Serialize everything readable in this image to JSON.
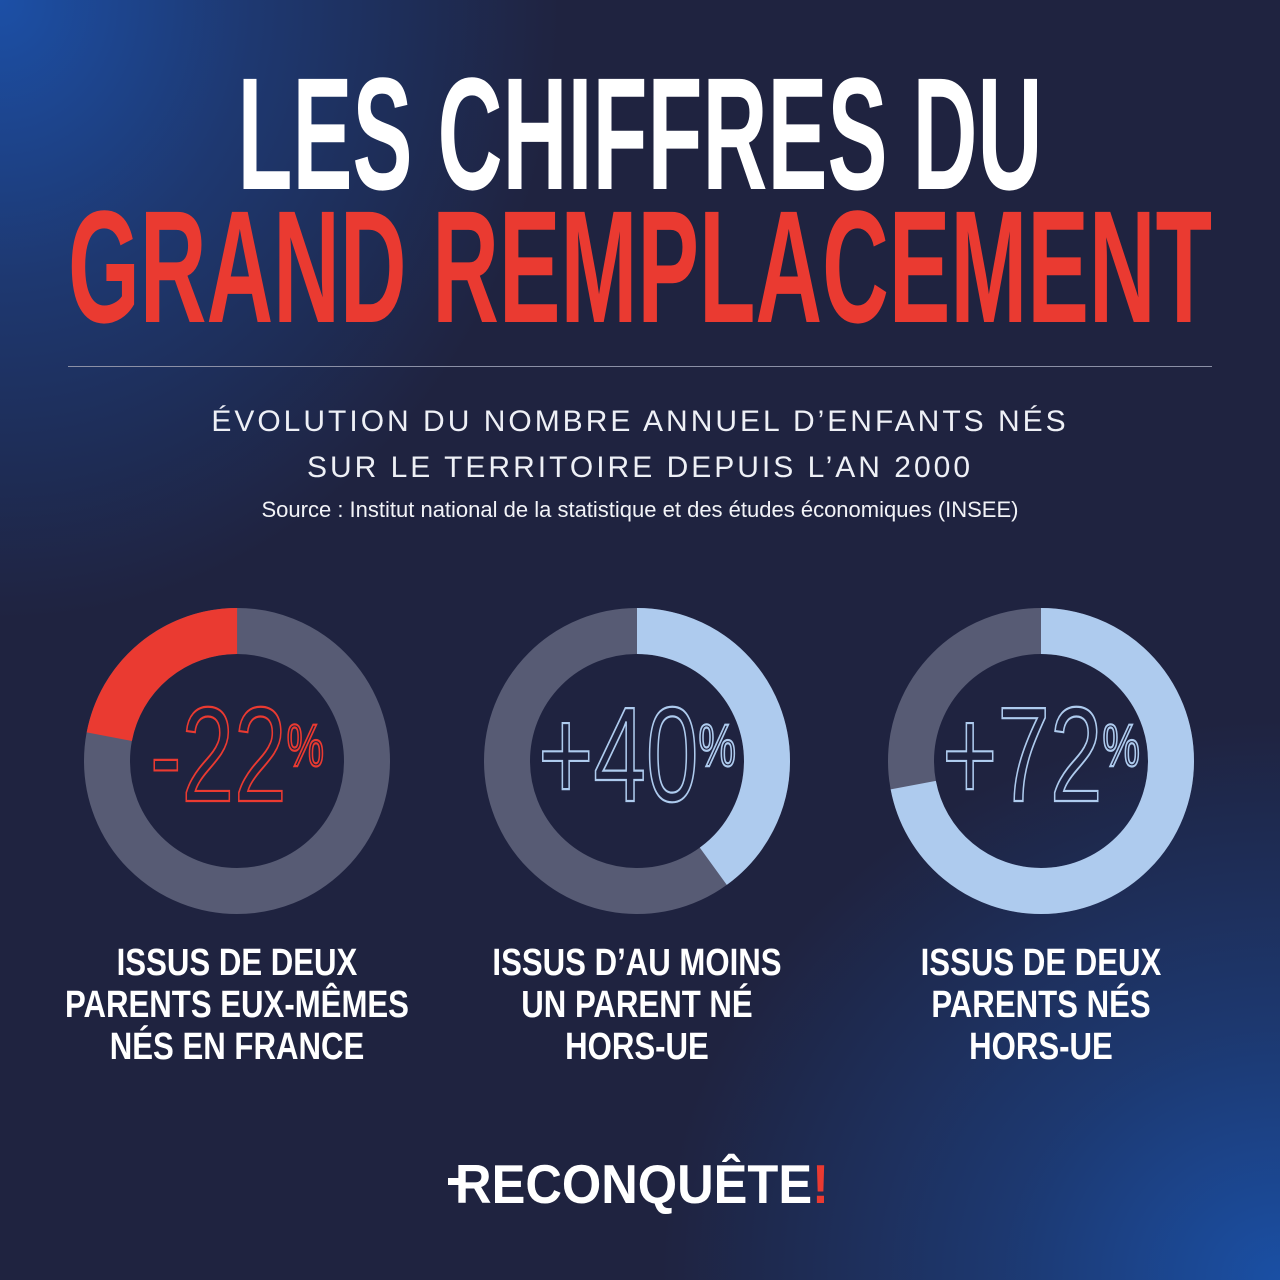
{
  "title": {
    "line1": "LES CHIFFRES DU",
    "line2": "GRAND REMPLACEMENT"
  },
  "subtitle": {
    "lines": [
      "ÉVOLUTION DU NOMBRE ANNUEL D’ENFANTS NÉS",
      "SUR LE TERRITOIRE DEPUIS L’AN 2000"
    ]
  },
  "source": "Source : Institut national de la statistique et des études économiques (INSEE)",
  "colors": {
    "background": "#1f2340",
    "title": "#ffffff",
    "accent_red": "#ea3a31",
    "accent_blue": "#aecbee",
    "track": "#575b74"
  },
  "chart_data": [
    {
      "type": "pie",
      "donut": true,
      "value": -22,
      "value_label": "-22",
      "unit": "%",
      "color": "#ea3a31",
      "label_lines": [
        "ISSUS DE DEUX",
        "PARENTS EUX-MÊMES",
        "NÉS EN FRANCE"
      ]
    },
    {
      "type": "pie",
      "donut": true,
      "value": 40,
      "value_label": "+40",
      "unit": "%",
      "color": "#aecbee",
      "label_lines": [
        "ISSUS D’AU MOINS",
        "UN PARENT NÉ",
        "HORS-UE"
      ]
    },
    {
      "type": "pie",
      "donut": true,
      "value": 72,
      "value_label": "+72",
      "unit": "%",
      "color": "#aecbee",
      "label_lines": [
        "ISSUS DE DEUX",
        "PARENTS NÉS",
        "HORS-UE"
      ]
    }
  ],
  "logo": {
    "text": "RECONQUÊTE",
    "mark": "!"
  }
}
